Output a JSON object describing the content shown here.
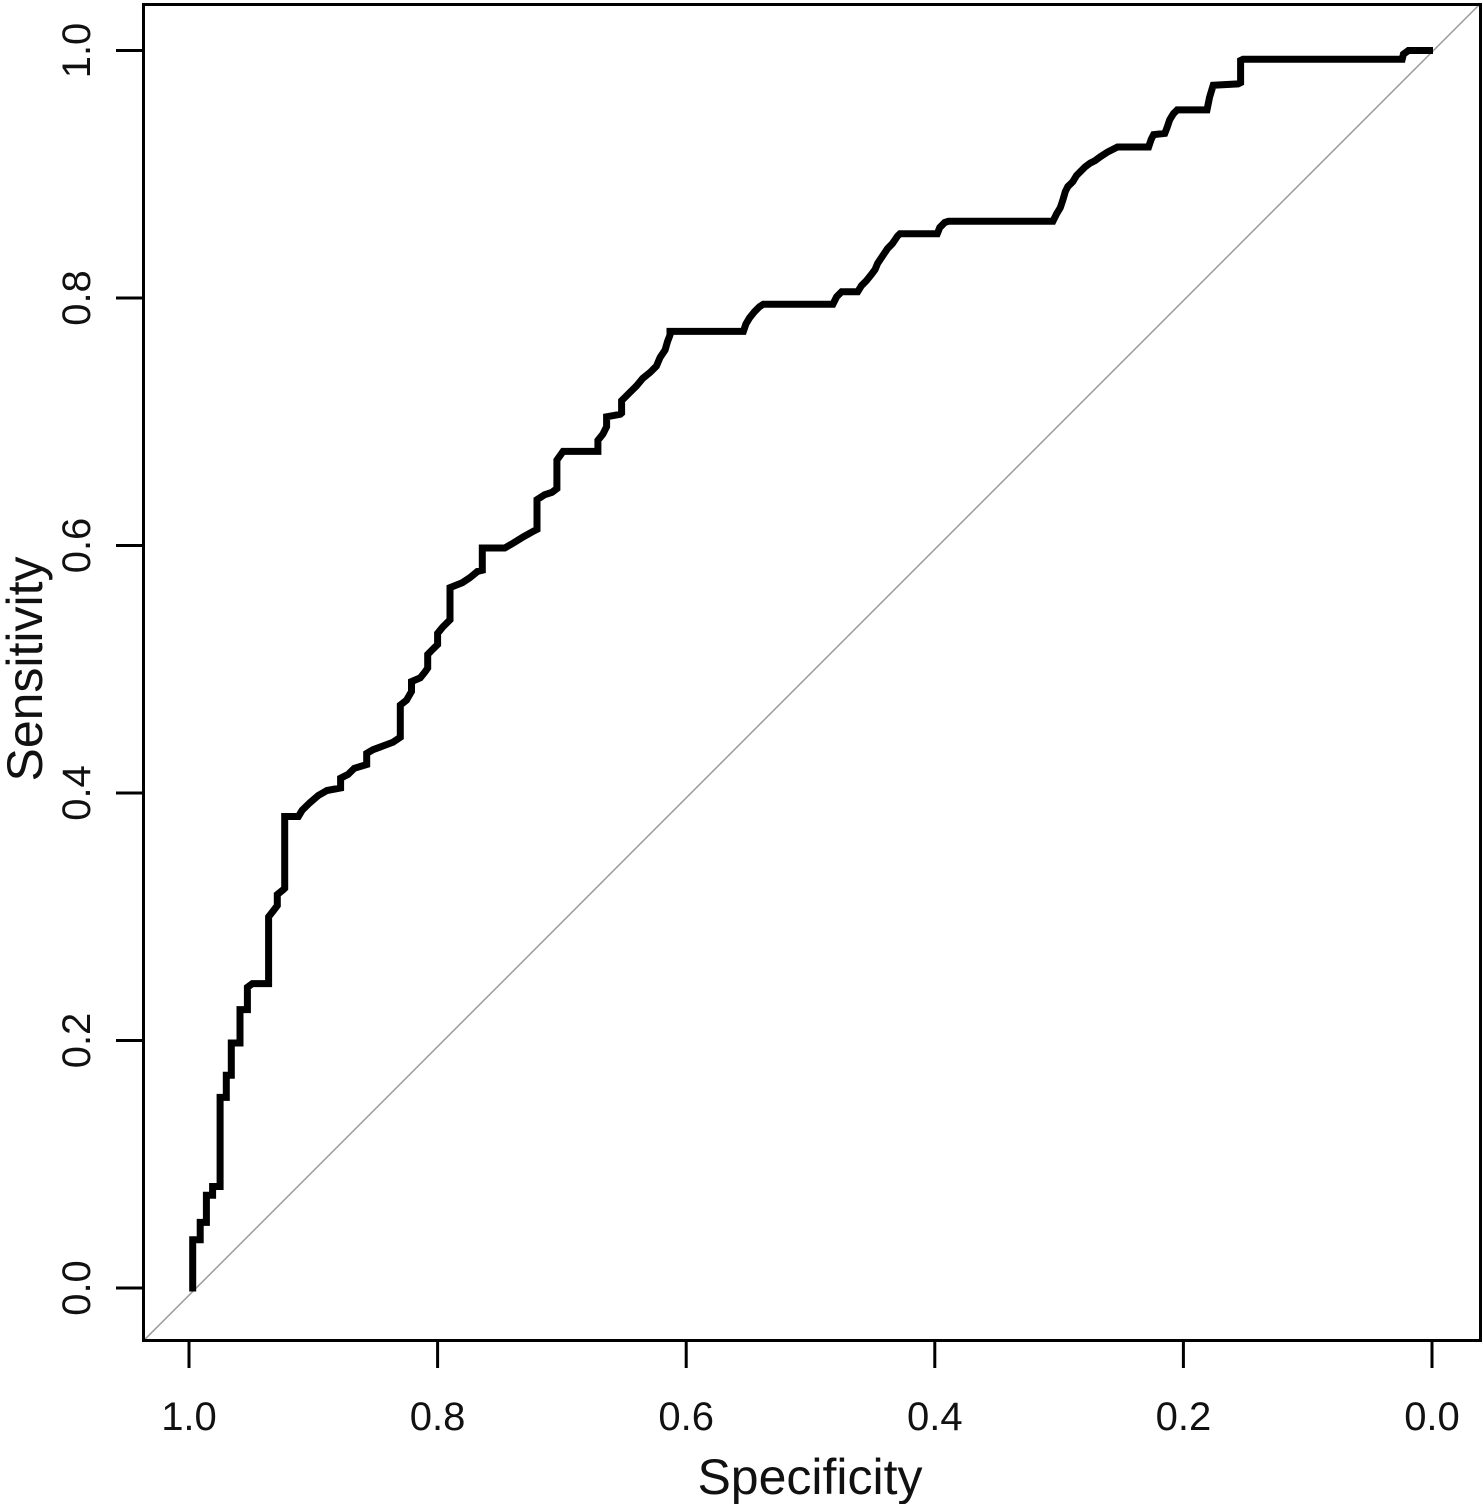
{
  "figure": {
    "kind": "roc-plot",
    "background": "#ffffff",
    "frame_color": "#000000"
  },
  "chart_data": {
    "type": "line",
    "title": "",
    "xlabel": "Specificity",
    "ylabel": "Sensitivity",
    "grid": false,
    "legend": null,
    "x_axis": {
      "min": 1.0,
      "max": 0.0,
      "reversed": true,
      "ticks": [
        {
          "value": 1.0,
          "label": "1.0"
        },
        {
          "value": 0.8,
          "label": "0.8"
        },
        {
          "value": 0.6,
          "label": "0.6"
        },
        {
          "value": 0.4,
          "label": "0.4"
        },
        {
          "value": 0.2,
          "label": "0.2"
        },
        {
          "value": 0.0,
          "label": "0.0"
        }
      ]
    },
    "y_axis": {
      "min": 0.0,
      "max": 1.0,
      "reversed": false,
      "ticks": [
        {
          "value": 0.0,
          "label": "0.0"
        },
        {
          "value": 0.2,
          "label": "0.2"
        },
        {
          "value": 0.4,
          "label": "0.4"
        },
        {
          "value": 0.6,
          "label": "0.6"
        },
        {
          "value": 0.8,
          "label": "0.8"
        },
        {
          "value": 1.0,
          "label": "1.0"
        }
      ]
    },
    "series": [
      {
        "name": "ROC curve",
        "color": "#000000",
        "line_width": 7,
        "points": [
          [
            0.997,
            0.0
          ],
          [
            0.997,
            0.039
          ],
          [
            0.991,
            0.039
          ],
          [
            0.991,
            0.053
          ],
          [
            0.986,
            0.053
          ],
          [
            0.986,
            0.075
          ],
          [
            0.981,
            0.075
          ],
          [
            0.981,
            0.082
          ],
          [
            0.975,
            0.082
          ],
          [
            0.975,
            0.154
          ],
          [
            0.97,
            0.154
          ],
          [
            0.97,
            0.172
          ],
          [
            0.966,
            0.172
          ],
          [
            0.966,
            0.198
          ],
          [
            0.959,
            0.198
          ],
          [
            0.959,
            0.225
          ],
          [
            0.953,
            0.225
          ],
          [
            0.953,
            0.243
          ],
          [
            0.949,
            0.246
          ],
          [
            0.936,
            0.246
          ],
          [
            0.936,
            0.3
          ],
          [
            0.932,
            0.305
          ],
          [
            0.929,
            0.309
          ],
          [
            0.929,
            0.318
          ],
          [
            0.924,
            0.322
          ],
          [
            0.923,
            0.323
          ],
          [
            0.923,
            0.381
          ],
          [
            0.912,
            0.381
          ],
          [
            0.909,
            0.386
          ],
          [
            0.903,
            0.392
          ],
          [
            0.896,
            0.398
          ],
          [
            0.889,
            0.402
          ],
          [
            0.878,
            0.404
          ],
          [
            0.878,
            0.412
          ],
          [
            0.872,
            0.415
          ],
          [
            0.867,
            0.42
          ],
          [
            0.857,
            0.423
          ],
          [
            0.857,
            0.432
          ],
          [
            0.852,
            0.435
          ],
          [
            0.844,
            0.438
          ],
          [
            0.836,
            0.441
          ],
          [
            0.83,
            0.445
          ],
          [
            0.83,
            0.471
          ],
          [
            0.825,
            0.475
          ],
          [
            0.821,
            0.482
          ],
          [
            0.821,
            0.49
          ],
          [
            0.814,
            0.493
          ],
          [
            0.81,
            0.498
          ],
          [
            0.808,
            0.501
          ],
          [
            0.808,
            0.512
          ],
          [
            0.804,
            0.516
          ],
          [
            0.8,
            0.52
          ],
          [
            0.8,
            0.529
          ],
          [
            0.796,
            0.534
          ],
          [
            0.79,
            0.54
          ],
          [
            0.79,
            0.566
          ],
          [
            0.78,
            0.57
          ],
          [
            0.774,
            0.574
          ],
          [
            0.768,
            0.579
          ],
          [
            0.764,
            0.58
          ],
          [
            0.764,
            0.598
          ],
          [
            0.746,
            0.598
          ],
          [
            0.739,
            0.602
          ],
          [
            0.731,
            0.607
          ],
          [
            0.724,
            0.611
          ],
          [
            0.72,
            0.613
          ],
          [
            0.72,
            0.637
          ],
          [
            0.714,
            0.641
          ],
          [
            0.708,
            0.643
          ],
          [
            0.704,
            0.646
          ],
          [
            0.704,
            0.669
          ],
          [
            0.699,
            0.676
          ],
          [
            0.671,
            0.676
          ],
          [
            0.671,
            0.685
          ],
          [
            0.667,
            0.69
          ],
          [
            0.664,
            0.696
          ],
          [
            0.664,
            0.704
          ],
          [
            0.653,
            0.706
          ],
          [
            0.652,
            0.707
          ],
          [
            0.652,
            0.717
          ],
          [
            0.646,
            0.723
          ],
          [
            0.64,
            0.729
          ],
          [
            0.635,
            0.735
          ],
          [
            0.629,
            0.74
          ],
          [
            0.624,
            0.745
          ],
          [
            0.621,
            0.752
          ],
          [
            0.617,
            0.758
          ],
          [
            0.615,
            0.765
          ],
          [
            0.613,
            0.77
          ],
          [
            0.613,
            0.773
          ],
          [
            0.554,
            0.773
          ],
          [
            0.552,
            0.779
          ],
          [
            0.549,
            0.784
          ],
          [
            0.545,
            0.789
          ],
          [
            0.541,
            0.793
          ],
          [
            0.538,
            0.795
          ],
          [
            0.482,
            0.795
          ],
          [
            0.479,
            0.801
          ],
          [
            0.475,
            0.805
          ],
          [
            0.462,
            0.805
          ],
          [
            0.459,
            0.81
          ],
          [
            0.455,
            0.814
          ],
          [
            0.451,
            0.819
          ],
          [
            0.448,
            0.823
          ],
          [
            0.446,
            0.828
          ],
          [
            0.442,
            0.834
          ],
          [
            0.438,
            0.84
          ],
          [
            0.434,
            0.844
          ],
          [
            0.43,
            0.85
          ],
          [
            0.428,
            0.852
          ],
          [
            0.398,
            0.852
          ],
          [
            0.396,
            0.857
          ],
          [
            0.392,
            0.861
          ],
          [
            0.389,
            0.862
          ],
          [
            0.305,
            0.862
          ],
          [
            0.302,
            0.868
          ],
          [
            0.299,
            0.873
          ],
          [
            0.297,
            0.879
          ],
          [
            0.295,
            0.886
          ],
          [
            0.293,
            0.89
          ],
          [
            0.289,
            0.894
          ],
          [
            0.286,
            0.899
          ],
          [
            0.282,
            0.903
          ],
          [
            0.279,
            0.906
          ],
          [
            0.275,
            0.909
          ],
          [
            0.271,
            0.911
          ],
          [
            0.267,
            0.914
          ],
          [
            0.261,
            0.918
          ],
          [
            0.253,
            0.922
          ],
          [
            0.228,
            0.922
          ],
          [
            0.226,
            0.928
          ],
          [
            0.224,
            0.932
          ],
          [
            0.215,
            0.933
          ],
          [
            0.213,
            0.938
          ],
          [
            0.211,
            0.944
          ],
          [
            0.208,
            0.949
          ],
          [
            0.205,
            0.952
          ],
          [
            0.181,
            0.952
          ],
          [
            0.179,
            0.962
          ],
          [
            0.176,
            0.972
          ],
          [
            0.156,
            0.973
          ],
          [
            0.154,
            0.974
          ],
          [
            0.154,
            0.992
          ],
          [
            0.152,
            0.993
          ],
          [
            0.024,
            0.993
          ],
          [
            0.023,
            0.997
          ],
          [
            0.019,
            1.0
          ],
          [
            0.002,
            1.0
          ]
        ]
      }
    ],
    "reference_line": {
      "name": "chance diagonal",
      "color": "#9b9b9b",
      "line_width": 1.5,
      "x": [
        1.037,
        -0.039
      ],
      "y": [
        -0.043,
        1.038
      ]
    }
  }
}
